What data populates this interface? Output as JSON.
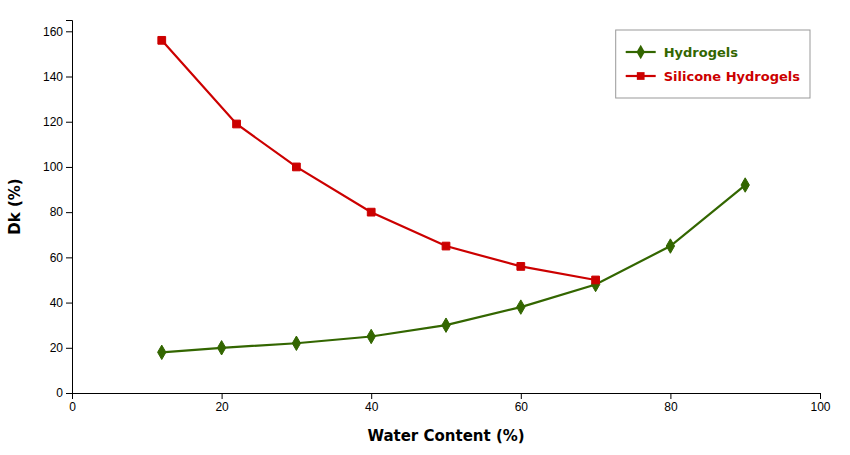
{
  "chart_data": {
    "type": "line",
    "xlabel": "Water Content (%)",
    "ylabel": "Dk (%)",
    "series": [
      {
        "name": "Hydrogels",
        "color": "#336600",
        "marker": "diamond",
        "x": [
          12,
          20,
          30,
          40,
          50,
          60,
          70,
          80,
          90
        ],
        "values": [
          18,
          20,
          22,
          25,
          30,
          38,
          48,
          65,
          92
        ]
      },
      {
        "name": "Silicone Hydrogels",
        "color": "#cc0000",
        "marker": "square",
        "x": [
          12,
          22,
          30,
          40,
          50,
          60,
          70
        ],
        "values": [
          156,
          119,
          100,
          80,
          65,
          56,
          50
        ]
      }
    ],
    "xlim": [
      0,
      100
    ],
    "ylim": [
      0,
      165
    ],
    "xticks": [
      0,
      20,
      40,
      60,
      80,
      100
    ],
    "yticks": [
      0,
      20,
      40,
      60,
      80,
      100,
      120,
      140,
      160
    ],
    "grid": false,
    "legend": "upper right"
  }
}
